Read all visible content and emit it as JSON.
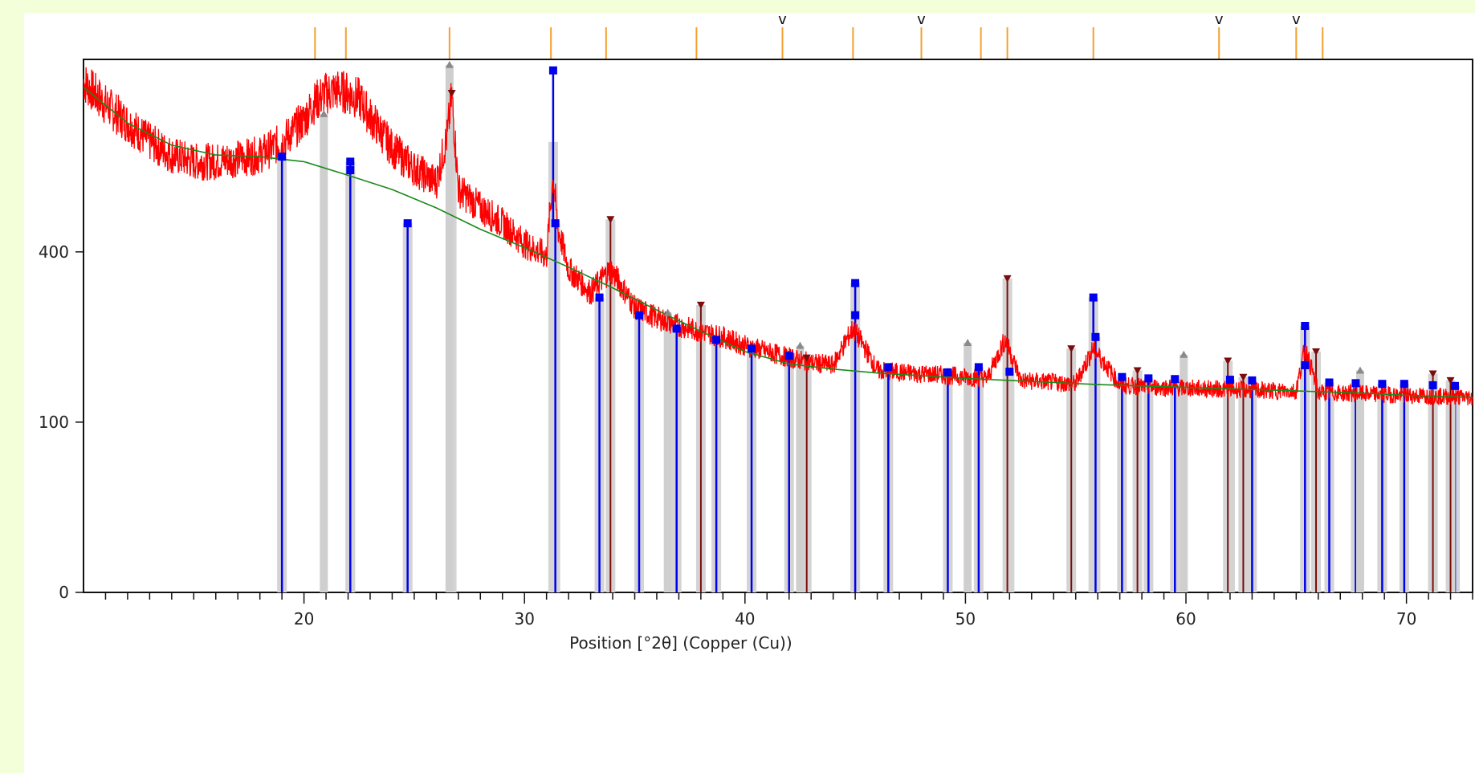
{
  "chart_data": {
    "type": "line",
    "title": "",
    "xlabel": "Position [°2θ] (Copper (Cu))",
    "ylabel": "",
    "x_range": [
      10,
      73
    ],
    "y_scale": "sqrt",
    "y_ticks": [
      0,
      100,
      400
    ],
    "x_ticks": [
      20,
      30,
      40,
      50,
      60,
      70
    ],
    "x_tick_labels": [
      "20",
      "30",
      "40",
      "50",
      "60",
      "70"
    ],
    "y_tick_labels": [
      "0",
      "100",
      "400"
    ],
    "grid": false,
    "colors": {
      "observed": "#ff0000",
      "background": "#1a8a1a",
      "phase_blue": "#0000ee",
      "phase_darkred": "#7b0c0c",
      "phase_gray": "#8a8a8a",
      "reference_tick": "#f5a030",
      "panel_bg": "#f2ffd8"
    },
    "series": [
      {
        "role": "observed-pattern",
        "x": [
          10,
          11,
          12,
          13,
          14,
          15,
          16,
          17,
          18,
          19,
          20,
          20.5,
          21,
          21.5,
          22,
          22.5,
          23,
          24,
          25,
          26,
          26.5,
          26.7,
          27,
          28,
          29,
          30,
          31,
          31.3,
          31.5,
          32,
          33,
          33.9,
          35,
          36,
          37,
          38,
          39,
          40,
          41,
          42,
          43,
          44,
          44.9,
          46,
          47,
          48,
          49,
          50,
          51,
          51.8,
          52.5,
          54,
          55,
          55.8,
          57,
          58,
          59,
          60,
          61,
          62,
          63,
          64,
          65,
          65.4,
          66,
          67,
          68,
          69,
          70,
          71,
          72,
          73
        ],
        "y": [
          900,
          820,
          760,
          700,
          660,
          640,
          640,
          650,
          660,
          700,
          770,
          830,
          860,
          870,
          860,
          840,
          780,
          680,
          620,
          580,
          720,
          850,
          560,
          510,
          470,
          420,
          390,
          600,
          460,
          360,
          310,
          360,
          280,
          260,
          245,
          235,
          225,
          210,
          200,
          190,
          182,
          178,
          240,
          170,
          167,
          165,
          163,
          160,
          158,
          220,
          155,
          152,
          150,
          205,
          148,
          146,
          145,
          144,
          143,
          142,
          141,
          140,
          140,
          205,
          138,
          137,
          136,
          135,
          134,
          133,
          132,
          131
        ]
      },
      {
        "role": "fitted-background",
        "x": [
          10,
          12,
          14,
          16,
          18,
          20,
          22,
          24,
          26,
          28,
          30,
          32,
          34,
          36,
          38,
          40,
          42,
          44,
          46,
          48,
          50,
          52,
          54,
          56,
          58,
          60,
          62,
          64,
          66,
          68,
          70,
          73
        ],
        "y": [
          880,
          760,
          690,
          660,
          655,
          640,
          600,
          560,
          510,
          455,
          410,
          365,
          320,
          275,
          235,
          200,
          180,
          172,
          166,
          162,
          158,
          155,
          152,
          149,
          147,
          145,
          143,
          141,
          139,
          137,
          134,
          131
        ]
      }
    ],
    "phase_markers": [
      {
        "color_key": "phase_blue",
        "marker": "square",
        "x": [
          19.0,
          22.1,
          22.1,
          24.7,
          31.3,
          31.4,
          33.4,
          35.2,
          36.9,
          38.7,
          40.3,
          42.0,
          45.0,
          45.0,
          46.5,
          49.2,
          50.6,
          52.0,
          55.8,
          55.9,
          57.1,
          58.3,
          59.5,
          62.0,
          63.0,
          65.4,
          65.4,
          66.5,
          67.7,
          68.9,
          69.9,
          71.2,
          72.2
        ],
        "y": [
          655,
          640,
          615,
          470,
          940,
          470,
          300,
          265,
          240,
          220,
          205,
          193,
          330,
          265,
          175,
          167,
          175,
          168,
          300,
          225,
          160,
          158,
          157,
          156,
          155,
          245,
          178,
          152,
          151,
          150,
          150,
          148,
          147
        ]
      },
      {
        "color_key": "phase_darkred",
        "marker": "triangle-down",
        "x": [
          26.7,
          33.9,
          38.0,
          42.8,
          51.9,
          54.8,
          57.8,
          61.9,
          62.6,
          65.9,
          71.2,
          72.0
        ],
        "y": [
          860,
          480,
          285,
          190,
          340,
          205,
          170,
          185,
          160,
          200,
          165,
          155
        ]
      },
      {
        "color_key": "phase_gray",
        "marker": "triangle-up",
        "x": [
          20.9,
          26.6,
          36.5,
          42.5,
          50.1,
          59.9,
          67.9
        ],
        "y": [
          790,
          960,
          270,
          210,
          215,
          195,
          170
        ]
      }
    ],
    "reference_ticks": {
      "x": [
        20.5,
        21.9,
        26.6,
        31.2,
        33.7,
        37.8,
        41.7,
        44.9,
        48.0,
        50.7,
        51.9,
        55.8,
        61.5,
        65.0,
        66.2
      ],
      "flagged_x": [
        41.7,
        48.0,
        61.5,
        65.0
      ],
      "flag_glyph": "v"
    }
  }
}
